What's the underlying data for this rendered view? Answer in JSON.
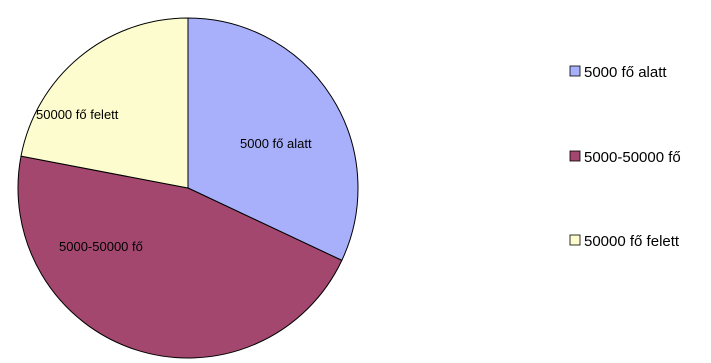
{
  "chart_data": {
    "type": "pie",
    "title": "",
    "legend_position": "right",
    "slices": [
      {
        "label": "5000 fő alatt",
        "value": 32,
        "color": "#a9b0fb"
      },
      {
        "label": "5000-50000 fő",
        "value": 46,
        "color": "#a3476f"
      },
      {
        "label": "50000 fő felett",
        "value": 22,
        "color": "#fcfcce"
      }
    ],
    "slice_border_color": "#000000"
  }
}
